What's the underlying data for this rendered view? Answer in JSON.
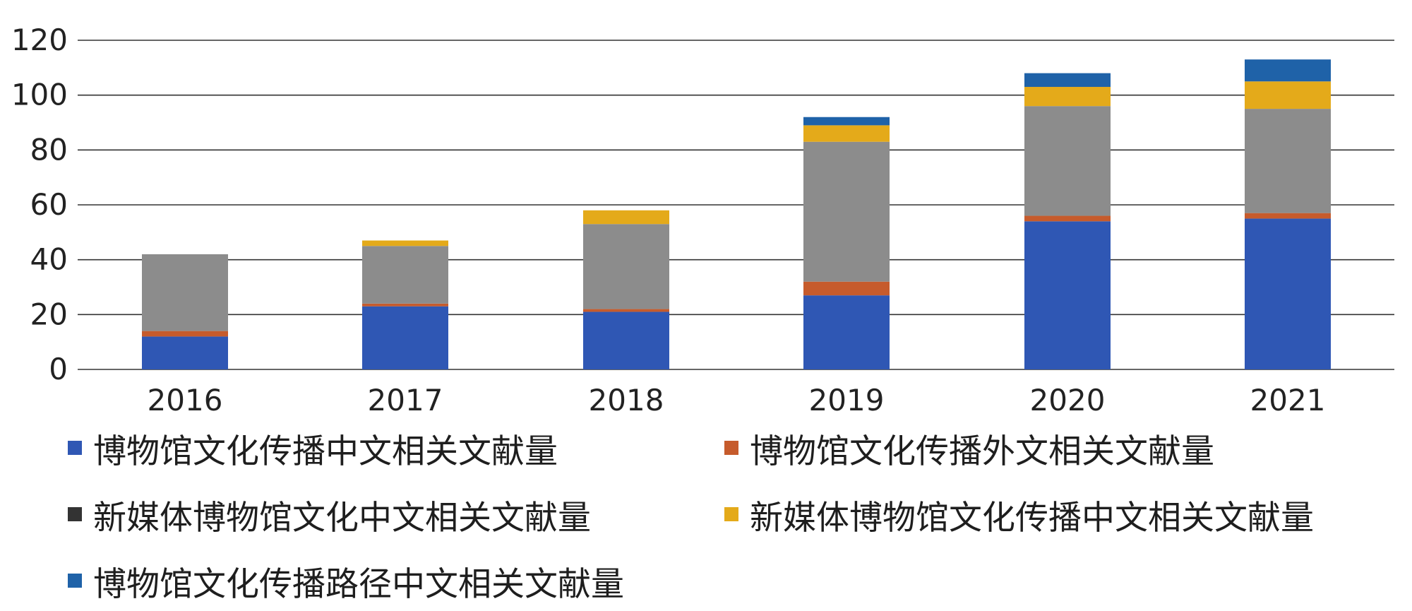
{
  "chart_data": {
    "type": "bar",
    "stacked": true,
    "categories": [
      "2016",
      "2017",
      "2018",
      "2019",
      "2020",
      "2021"
    ],
    "ylim": [
      0,
      120
    ],
    "yticks": [
      "0",
      "20",
      "40",
      "60",
      "80",
      "100",
      "120"
    ],
    "grid": true,
    "legend_position": "bottom",
    "series": [
      {
        "name": "博物馆文化传播中文相关文献量",
        "color": "#2f57b4",
        "values": [
          12,
          23,
          21,
          27,
          54,
          55
        ]
      },
      {
        "name": "博物馆文化传播外文相关文献量",
        "color": "#c65b2c",
        "values": [
          2,
          1,
          1,
          5,
          2,
          2
        ]
      },
      {
        "name": "新媒体博物馆文化中文相关文献量",
        "color": "#8c8c8c",
        "legend_color": "#333333",
        "values": [
          28,
          21,
          31,
          51,
          40,
          38
        ]
      },
      {
        "name": "新媒体博物馆文化传播中文相关文献量",
        "color": "#e4aa1a",
        "values": [
          0,
          2,
          5,
          6,
          7,
          10
        ]
      },
      {
        "name": "博物馆文化传播路径中文相关文献量",
        "color": "#1f62a8",
        "values": [
          0,
          0,
          0,
          3,
          5,
          8
        ]
      }
    ]
  }
}
